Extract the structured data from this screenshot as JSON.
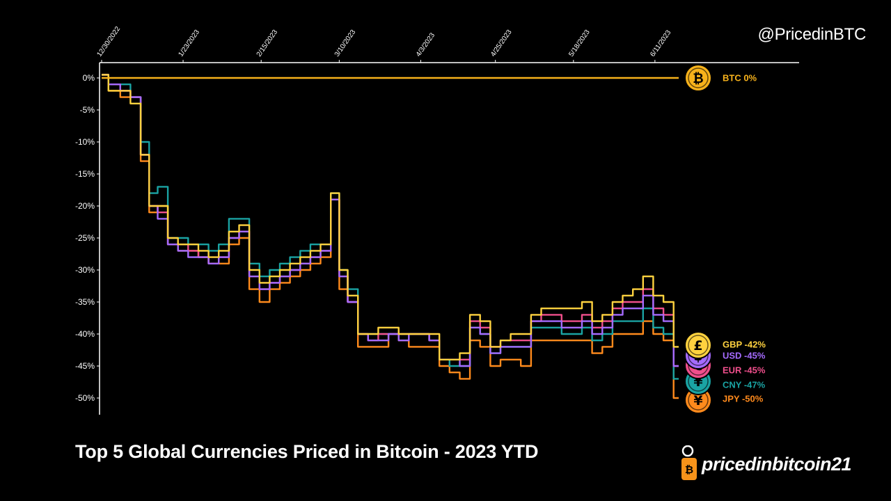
{
  "header": {
    "handle": "@PricedinBTC"
  },
  "footer": {
    "title": "Top 5 Global Currencies Priced in Bitcoin - 2023 YTD",
    "brand": "pricedinbitcoin21"
  },
  "chart_data": {
    "type": "line",
    "title": "Top 5 Global Currencies Priced in Bitcoin - 2023 YTD",
    "xlabel": "",
    "ylabel": "",
    "x_ticks": [
      "12/30/2022",
      "1/23/2023",
      "2/15/2023",
      "3/10/2023",
      "4/3/2023",
      "4/25/2023",
      "5/18/2023",
      "6/11/2023"
    ],
    "y_ticks": [
      "0%",
      "-5%",
      "-10%",
      "-15%",
      "-20%",
      "-25%",
      "-30%",
      "-35%",
      "-40%",
      "-45%",
      "-50%"
    ],
    "ylim": [
      -52,
      2
    ],
    "x_axis_position": "top",
    "grid": false,
    "legend": "right end labels",
    "x": [
      "2022-12-30",
      "2023-01-03",
      "2023-01-06",
      "2023-01-09",
      "2023-01-12",
      "2023-01-14",
      "2023-01-17",
      "2023-01-20",
      "2023-01-23",
      "2023-01-26",
      "2023-01-29",
      "2023-02-01",
      "2023-02-04",
      "2023-02-07",
      "2023-02-10",
      "2023-02-13",
      "2023-02-16",
      "2023-02-19",
      "2023-02-22",
      "2023-02-25",
      "2023-02-28",
      "2023-03-03",
      "2023-03-06",
      "2023-03-09",
      "2023-03-11",
      "2023-03-14",
      "2023-03-17",
      "2023-03-20",
      "2023-03-23",
      "2023-03-26",
      "2023-03-29",
      "2023-04-01",
      "2023-04-04",
      "2023-04-07",
      "2023-04-10",
      "2023-04-13",
      "2023-04-16",
      "2023-04-19",
      "2023-04-22",
      "2023-04-25",
      "2023-04-28",
      "2023-05-01",
      "2023-05-04",
      "2023-05-07",
      "2023-05-10",
      "2023-05-13",
      "2023-05-16",
      "2023-05-19",
      "2023-05-22",
      "2023-05-25",
      "2023-05-28",
      "2023-05-31",
      "2023-06-03",
      "2023-06-06",
      "2023-06-09",
      "2023-06-12",
      "2023-06-15",
      "2023-06-18"
    ],
    "series": [
      {
        "name": "BTC",
        "end_label": "BTC 0%",
        "color": "#f7b21b",
        "icon": "bitcoin-icon",
        "values": [
          0,
          0,
          0,
          0,
          0,
          0,
          0,
          0,
          0,
          0,
          0,
          0,
          0,
          0,
          0,
          0,
          0,
          0,
          0,
          0,
          0,
          0,
          0,
          0,
          0,
          0,
          0,
          0,
          0,
          0,
          0,
          0,
          0,
          0,
          0,
          0,
          0,
          0,
          0,
          0,
          0,
          0,
          0,
          0,
          0,
          0,
          0,
          0,
          0,
          0,
          0,
          0,
          0,
          0,
          0,
          0,
          0,
          0
        ]
      },
      {
        "name": "GBP",
        "end_label": "GBP -42%",
        "color": "#ffd23f",
        "icon": "pound-icon",
        "values": [
          0.5,
          -2,
          -2,
          -4,
          -12,
          -20,
          -20,
          -25,
          -26,
          -26,
          -27,
          -28,
          -27,
          -24,
          -23,
          -30,
          -32,
          -31,
          -30,
          -29,
          -28,
          -27,
          -26,
          -18,
          -30,
          -34,
          -40,
          -40,
          -39,
          -39,
          -40,
          -40,
          -40,
          -40,
          -44,
          -44,
          -43,
          -37,
          -38,
          -42,
          -41,
          -40,
          -40,
          -37,
          -36,
          -36,
          -36,
          -36,
          -35,
          -38,
          -37,
          -35,
          -34,
          -33,
          -31,
          -34,
          -35,
          -42
        ]
      },
      {
        "name": "USD",
        "end_label": "USD -45%",
        "color": "#a56bff",
        "icon": "dollar-icon",
        "values": [
          0.5,
          -1,
          -2,
          -3,
          -12,
          -20,
          -22,
          -26,
          -27,
          -28,
          -28,
          -29,
          -28,
          -25,
          -24,
          -31,
          -33,
          -32,
          -31,
          -30,
          -29,
          -28,
          -27,
          -19,
          -31,
          -35,
          -40,
          -41,
          -41,
          -40,
          -41,
          -40,
          -40,
          -41,
          -44,
          -44,
          -45,
          -39,
          -40,
          -43,
          -42,
          -42,
          -42,
          -38,
          -38,
          -38,
          -39,
          -39,
          -38,
          -40,
          -39,
          -37,
          -36,
          -36,
          -34,
          -37,
          -38,
          -45
        ]
      },
      {
        "name": "EUR",
        "end_label": "EUR -45%",
        "color": "#f04f8c",
        "icon": "euro-icon",
        "values": [
          0.5,
          -1,
          -2,
          -3,
          -12,
          -20,
          -21,
          -26,
          -26,
          -27,
          -28,
          -29,
          -28,
          -25,
          -24,
          -31,
          -33,
          -32,
          -31,
          -30,
          -29,
          -28,
          -27,
          -19,
          -31,
          -35,
          -40,
          -41,
          -40,
          -40,
          -40,
          -40,
          -40,
          -41,
          -44,
          -44,
          -44,
          -38,
          -39,
          -42,
          -41,
          -41,
          -41,
          -38,
          -37,
          -37,
          -38,
          -38,
          -37,
          -39,
          -38,
          -36,
          -35,
          -35,
          -33,
          -36,
          -37,
          -45
        ]
      },
      {
        "name": "CNY",
        "end_label": "CNY -47%",
        "color": "#1aa3a3",
        "icon": "cny-icon",
        "values": [
          0.5,
          -1,
          -1,
          -3,
          -10,
          -18,
          -17,
          -25,
          -25,
          -26,
          -26,
          -27,
          -26,
          -22,
          -22,
          -29,
          -31,
          -30,
          -29,
          -28,
          -27,
          -26,
          -26,
          -18,
          -30,
          -33,
          -40,
          -40,
          -40,
          -40,
          -40,
          -40,
          -40,
          -41,
          -44,
          -45,
          -45,
          -39,
          -40,
          -43,
          -42,
          -42,
          -42,
          -39,
          -39,
          -39,
          -40,
          -40,
          -39,
          -41,
          -40,
          -38,
          -38,
          -38,
          -36,
          -39,
          -40,
          -47
        ]
      },
      {
        "name": "JPY",
        "end_label": "JPY -50%",
        "color": "#ff8a1c",
        "icon": "yen-icon",
        "values": [
          0.5,
          -2,
          -3,
          -3,
          -13,
          -21,
          -20,
          -26,
          -27,
          -27,
          -28,
          -29,
          -29,
          -26,
          -25,
          -33,
          -35,
          -33,
          -32,
          -31,
          -30,
          -29,
          -28,
          -19,
          -33,
          -35,
          -42,
          -42,
          -42,
          -40,
          -41,
          -42,
          -42,
          -42,
          -45,
          -46,
          -47,
          -41,
          -42,
          -45,
          -44,
          -44,
          -45,
          -41,
          -41,
          -41,
          -41,
          -41,
          -41,
          -43,
          -42,
          -40,
          -40,
          -40,
          -38,
          -40,
          -41,
          -50
        ]
      }
    ]
  }
}
